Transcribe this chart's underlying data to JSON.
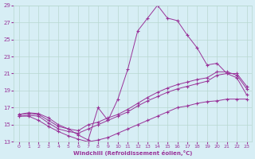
{
  "xlabel": "Windchill (Refroidissement éolien,°C)",
  "bg_color": "#d7eef5",
  "line_color": "#993399",
  "grid_color": "#b8d8d0",
  "xlim": [
    -0.5,
    23.5
  ],
  "ylim": [
    13,
    29
  ],
  "yticks": [
    13,
    15,
    17,
    19,
    21,
    23,
    25,
    27,
    29
  ],
  "xticks": [
    0,
    1,
    2,
    3,
    4,
    5,
    6,
    7,
    8,
    9,
    10,
    11,
    12,
    13,
    14,
    15,
    16,
    17,
    18,
    19,
    20,
    21,
    22,
    23
  ],
  "series": [
    {
      "x": [
        0,
        1,
        2,
        3,
        4,
        5,
        6,
        7,
        8,
        9,
        10,
        11,
        12,
        13,
        14,
        15,
        16,
        17,
        18,
        19,
        20,
        21,
        22,
        23
      ],
      "y": [
        16.2,
        16.4,
        16.3,
        15.8,
        15.0,
        14.5,
        13.8,
        13.2,
        17.0,
        15.5,
        18.0,
        21.5,
        26.0,
        27.5,
        29.0,
        27.5,
        27.2,
        25.5,
        24.0,
        22.0,
        22.2,
        21.0,
        21.0,
        19.5
      ]
    },
    {
      "x": [
        0,
        1,
        2,
        3,
        4,
        5,
        6,
        7,
        8,
        9,
        10,
        11,
        12,
        13,
        14,
        15,
        16,
        17,
        18,
        19,
        20,
        21,
        22,
        23
      ],
      "y": [
        16.2,
        16.3,
        16.2,
        15.5,
        14.8,
        14.5,
        14.3,
        15.0,
        15.3,
        15.8,
        16.2,
        16.8,
        17.5,
        18.2,
        18.8,
        19.3,
        19.7,
        20.0,
        20.3,
        20.5,
        21.2,
        21.2,
        20.8,
        19.2
      ]
    },
    {
      "x": [
        0,
        1,
        2,
        3,
        4,
        5,
        6,
        7,
        8,
        9,
        10,
        11,
        12,
        13,
        14,
        15,
        16,
        17,
        18,
        19,
        20,
        21,
        22,
        23
      ],
      "y": [
        16.0,
        16.1,
        16.0,
        15.2,
        14.5,
        14.2,
        14.0,
        14.5,
        15.0,
        15.5,
        16.0,
        16.5,
        17.2,
        17.8,
        18.3,
        18.8,
        19.2,
        19.5,
        19.8,
        20.1,
        20.8,
        21.0,
        20.5,
        18.5
      ]
    },
    {
      "x": [
        0,
        1,
        2,
        3,
        4,
        5,
        6,
        7,
        8,
        9,
        10,
        11,
        12,
        13,
        14,
        15,
        16,
        17,
        18,
        19,
        20,
        21,
        22,
        23
      ],
      "y": [
        16.0,
        16.0,
        15.5,
        14.8,
        14.2,
        13.7,
        13.3,
        13.0,
        13.2,
        13.5,
        14.0,
        14.5,
        15.0,
        15.5,
        16.0,
        16.5,
        17.0,
        17.2,
        17.5,
        17.7,
        17.8,
        18.0,
        18.0,
        18.0
      ]
    }
  ]
}
